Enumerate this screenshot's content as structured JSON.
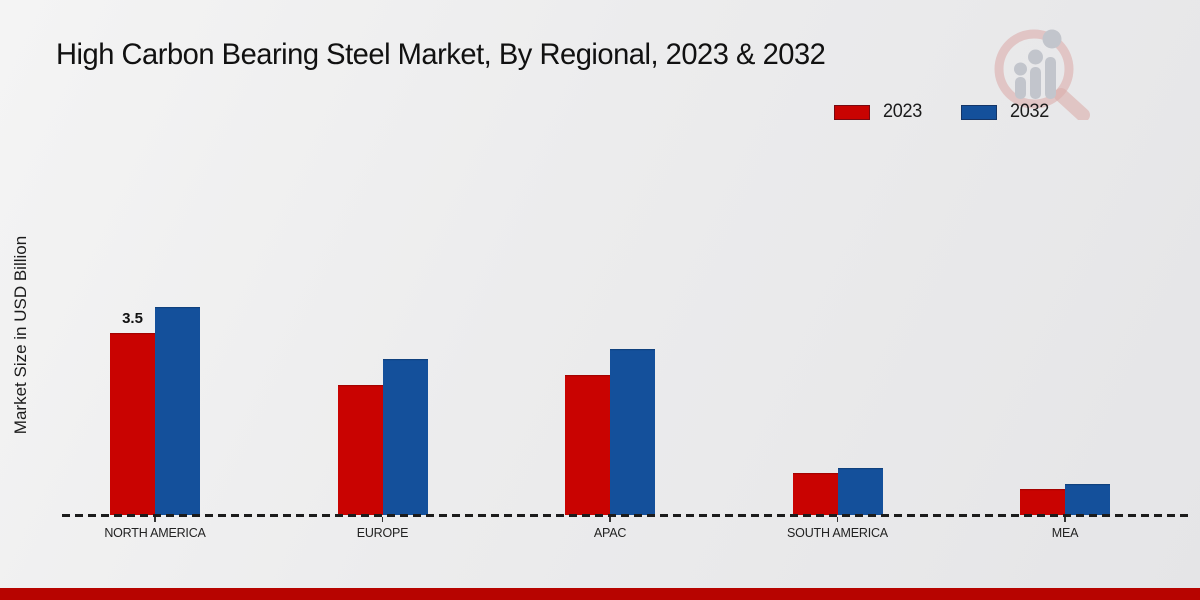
{
  "header": {
    "title": "High Carbon Bearing Steel Market, By Regional, 2023 & 2032"
  },
  "y_axis": {
    "label": "Market Size in USD Billion"
  },
  "watermark_icon": "magnifier-bar-chart-logo",
  "footer": {
    "bar_color": "#b70400"
  },
  "chart_data": {
    "type": "bar",
    "title": "High Carbon Bearing Steel Market, By Regional, 2023 & 2032",
    "xlabel": "",
    "ylabel": "Market Size in USD Billion",
    "categories": [
      "NORTH AMERICA",
      "EUROPE",
      "APAC",
      "SOUTH AMERICA",
      "MEA"
    ],
    "series": [
      {
        "name": "2023",
        "color": "#c90301",
        "values": [
          3.5,
          2.5,
          2.7,
          0.8,
          0.5
        ]
      },
      {
        "name": "2032",
        "color": "#14509b",
        "values": [
          4.0,
          3.0,
          3.2,
          0.9,
          0.6
        ]
      }
    ],
    "bar_labels": [
      {
        "series": "2023",
        "category": "NORTH AMERICA",
        "text": "3.5"
      }
    ],
    "ylim": [
      0,
      4.5
    ],
    "grid": false,
    "y_ticks_visible": false,
    "legend_position": "top-right",
    "baseline_style": "dashed"
  }
}
